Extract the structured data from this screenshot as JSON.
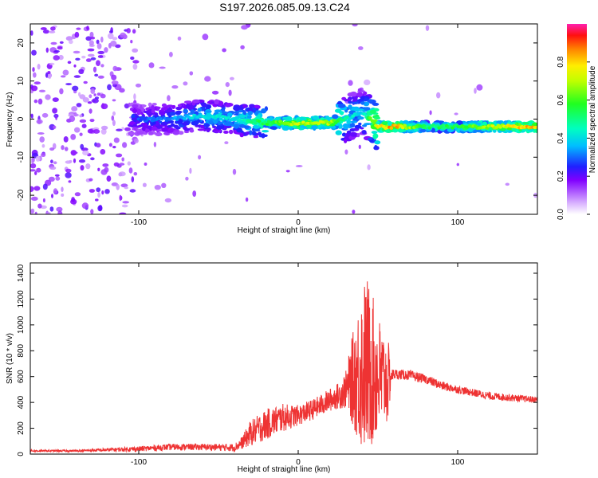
{
  "figure_title": "S197.2026.085.09.13.C24",
  "chart_data": [
    {
      "type": "heatmap",
      "xlabel": "Height of straight line (km)",
      "ylabel": "Frequency (Hz)",
      "xlim": [
        -168,
        150
      ],
      "ylim": [
        -25,
        25
      ],
      "xticks": [
        -100,
        0,
        100
      ],
      "xtick_labels": [
        "-100",
        "0",
        "100"
      ],
      "yticks": [
        -20,
        -10,
        0,
        10,
        20
      ],
      "ytick_labels": [
        "-20",
        "-10",
        "0",
        "10",
        "20"
      ],
      "grid": false,
      "colorbar": {
        "label": "Normalized spectral amplitude",
        "range": [
          0,
          1
        ],
        "ticks": [
          0.0,
          0.2,
          0.4,
          0.6,
          0.8
        ],
        "tick_labels": [
          "0.0",
          "0.2",
          "0.4",
          "0.6",
          "0.8"
        ]
      },
      "ridge": {
        "x": [
          -100,
          -80,
          -60,
          -40,
          -20,
          0,
          20,
          30,
          40,
          50,
          60,
          80,
          100,
          120,
          150
        ],
        "frequency": [
          0,
          0,
          1,
          0,
          -1,
          -1,
          -1,
          0,
          2,
          -2,
          -2,
          -2,
          -2,
          -2,
          -2
        ],
        "amplitude": [
          0.3,
          0.35,
          0.45,
          0.45,
          0.6,
          0.75,
          0.75,
          0.5,
          0.4,
          0.85,
          0.9,
          0.55,
          0.6,
          0.75,
          0.9
        ]
      }
    },
    {
      "type": "line",
      "xlabel": "Height of straight line (km)",
      "ylabel": "SNR (10 * v/v)",
      "xlim": [
        -168,
        150
      ],
      "ylim": [
        0,
        1480
      ],
      "xticks": [
        -100,
        0,
        100
      ],
      "xtick_labels": [
        "-100",
        "0",
        "100"
      ],
      "yticks": [
        0,
        200,
        400,
        600,
        800,
        1000,
        1200,
        1400
      ],
      "ytick_labels": [
        "0",
        "200",
        "400",
        "600",
        "800",
        "1000",
        "1200",
        "1400"
      ],
      "grid": false,
      "color": "#ee3333",
      "envelope": {
        "x": [
          -168,
          -140,
          -100,
          -80,
          -60,
          -40,
          -35,
          -30,
          -20,
          -10,
          0,
          10,
          20,
          25,
          30,
          33,
          36,
          40,
          43,
          46,
          50,
          53,
          57,
          58,
          60,
          70,
          80,
          90,
          100,
          120,
          150
        ],
        "mean": [
          25,
          25,
          40,
          55,
          55,
          50,
          90,
          160,
          230,
          280,
          300,
          350,
          420,
          450,
          500,
          560,
          600,
          660,
          700,
          650,
          600,
          580,
          550,
          600,
          620,
          610,
          580,
          530,
          500,
          450,
          420
        ],
        "spread": [
          8,
          8,
          20,
          25,
          25,
          30,
          50,
          100,
          120,
          110,
          80,
          80,
          90,
          100,
          150,
          300,
          450,
          650,
          700,
          600,
          500,
          400,
          300,
          60,
          40,
          40,
          35,
          35,
          30,
          30,
          25
        ]
      }
    }
  ]
}
